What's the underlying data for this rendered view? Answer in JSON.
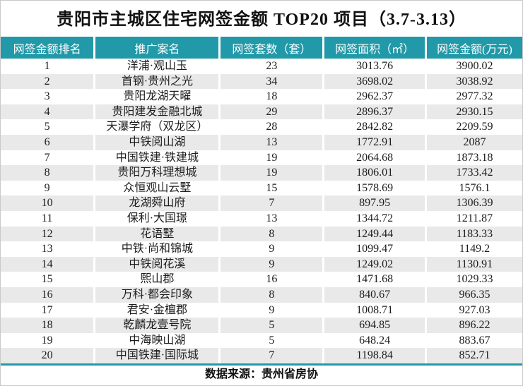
{
  "title": "贵阳市主城区住宅网签金额 TOP20 项目（3.7-3.13）",
  "footer": {
    "source_label": "数据来源：贵州省房协"
  },
  "colors": {
    "header_bg": "#2199a8",
    "row_alt_bg": "#e9e9e9",
    "accent_rule": "#2199a8",
    "text": "#1d1d1d",
    "header_text": "#ffffff"
  },
  "chart_data": {
    "type": "table",
    "title": "贵阳市主城区住宅网签金额 TOP20 项目（3.7-3.13）",
    "columns": [
      "网签金额排名",
      "推广案名",
      "网签套数（套）",
      "网签面积（㎡）",
      "网签金额(万元)"
    ],
    "rows": [
      [
        "1",
        "洋浦·观山玉",
        "23",
        "3013.76",
        "3900.02"
      ],
      [
        "2",
        "首钢·贵州之光",
        "34",
        "3698.02",
        "3038.92"
      ],
      [
        "3",
        "贵阳龙湖天曜",
        "18",
        "2962.37",
        "2977.32"
      ],
      [
        "4",
        "贵阳建发金融北城",
        "29",
        "2896.37",
        "2930.15"
      ],
      [
        "5",
        "天瀑学府（双龙区）",
        "28",
        "2842.82",
        "2209.59"
      ],
      [
        "6",
        "中铁阅山湖",
        "13",
        "1772.91",
        "2087"
      ],
      [
        "7",
        "中国铁建·铁建城",
        "19",
        "2064.68",
        "1873.18"
      ],
      [
        "8",
        "贵阳万科理想城",
        "19",
        "1806.01",
        "1733.42"
      ],
      [
        "9",
        "众恒观山云墅",
        "15",
        "1578.69",
        "1576.1"
      ],
      [
        "10",
        "龙湖舜山府",
        "7",
        "897.95",
        "1306.39"
      ],
      [
        "11",
        "保利·大国璟",
        "13",
        "1344.72",
        "1211.87"
      ],
      [
        "12",
        "花语墅",
        "8",
        "1249.44",
        "1183.33"
      ],
      [
        "13",
        "中铁·尚和锦城",
        "9",
        "1099.47",
        "1149.2"
      ],
      [
        "14",
        "中铁阅花溪",
        "9",
        "1249.02",
        "1130.91"
      ],
      [
        "15",
        "熙山郡",
        "16",
        "1471.68",
        "1029.33"
      ],
      [
        "16",
        "万科·都会印象",
        "8",
        "840.67",
        "966.35"
      ],
      [
        "17",
        "君安·金檀郡",
        "9",
        "1008.71",
        "927.03"
      ],
      [
        "18",
        "乾麟龙壹号院",
        "5",
        "694.85",
        "896.22"
      ],
      [
        "19",
        "中海映山湖",
        "5",
        "648.24",
        "883.67"
      ],
      [
        "20",
        "中国铁建·国际城",
        "7",
        "1198.84",
        "852.71"
      ]
    ],
    "source": "数据来源：贵州省房协",
    "layout": {
      "grid": false,
      "header_position": "top",
      "zebra_striping": true
    }
  }
}
